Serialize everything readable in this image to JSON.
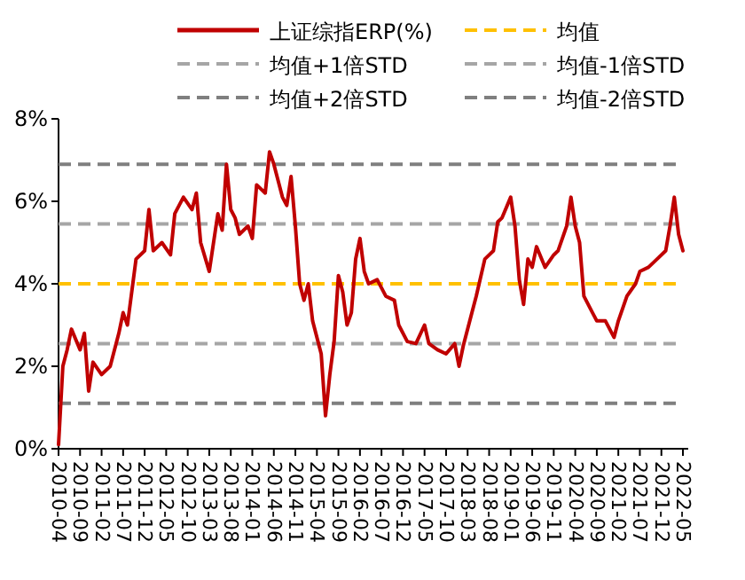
{
  "chart_data": {
    "type": "line",
    "x": [
      "2010-04",
      "2010-05",
      "2010-06",
      "2010-07",
      "2010-09",
      "2010-10",
      "2010-11",
      "2010-12",
      "2011-02",
      "2011-04",
      "2011-06",
      "2011-07",
      "2011-08",
      "2011-10",
      "2011-12",
      "2012-01",
      "2012-02",
      "2012-04",
      "2012-06",
      "2012-07",
      "2012-09",
      "2012-11",
      "2012-12",
      "2013-01",
      "2013-03",
      "2013-05",
      "2013-06",
      "2013-07",
      "2013-08",
      "2013-09",
      "2013-10",
      "2013-12",
      "2014-01",
      "2014-02",
      "2014-04",
      "2014-05",
      "2014-06",
      "2014-08",
      "2014-09",
      "2014-10",
      "2014-11",
      "2014-12",
      "2015-01",
      "2015-02",
      "2015-03",
      "2015-05",
      "2015-06",
      "2015-07",
      "2015-08",
      "2015-09",
      "2015-10",
      "2015-11",
      "2015-12",
      "2016-01",
      "2016-02",
      "2016-03",
      "2016-04",
      "2016-06",
      "2016-08",
      "2016-10",
      "2016-11",
      "2017-01",
      "2017-03",
      "2017-05",
      "2017-06",
      "2017-08",
      "2017-10",
      "2017-12",
      "2018-01",
      "2018-02",
      "2018-04",
      "2018-05",
      "2018-07",
      "2018-09",
      "2018-10",
      "2018-11",
      "2019-01",
      "2019-02",
      "2019-03",
      "2019-04",
      "2019-05",
      "2019-06",
      "2019-07",
      "2019-09",
      "2019-11",
      "2019-12",
      "2020-02",
      "2020-03",
      "2020-04",
      "2020-05",
      "2020-06",
      "2020-08",
      "2020-09",
      "2020-11",
      "2021-01",
      "2021-02",
      "2021-04",
      "2021-06",
      "2021-07",
      "2021-09",
      "2021-11",
      "2022-01",
      "2022-02",
      "2022-03",
      "2022-04",
      "2022-05"
    ],
    "series": [
      {
        "name": "上证综指ERP(%)",
        "color": "#c00000",
        "values": [
          0.1,
          2.0,
          2.4,
          2.9,
          2.4,
          2.8,
          1.4,
          2.1,
          1.8,
          2.0,
          2.8,
          3.3,
          3.0,
          4.6,
          4.8,
          5.8,
          4.8,
          5.0,
          4.7,
          5.7,
          6.1,
          5.8,
          6.2,
          5.0,
          4.3,
          5.7,
          5.3,
          6.9,
          5.8,
          5.6,
          5.2,
          5.4,
          5.1,
          6.4,
          6.2,
          7.2,
          6.9,
          6.1,
          5.9,
          6.6,
          5.4,
          4.0,
          3.6,
          4.0,
          3.1,
          2.3,
          0.8,
          1.8,
          2.6,
          4.2,
          3.8,
          3.0,
          3.3,
          4.6,
          5.1,
          4.3,
          4.0,
          4.1,
          3.7,
          3.6,
          3.0,
          2.6,
          2.55,
          3.0,
          2.55,
          2.4,
          2.3,
          2.55,
          2.0,
          2.5,
          3.3,
          3.7,
          4.6,
          4.8,
          5.5,
          5.6,
          6.1,
          5.4,
          4.1,
          3.5,
          4.6,
          4.4,
          4.9,
          4.4,
          4.7,
          4.8,
          5.4,
          6.1,
          5.4,
          5.0,
          3.7,
          3.3,
          3.1,
          3.1,
          2.7,
          3.1,
          3.7,
          4.0,
          4.3,
          4.4,
          4.6,
          4.8,
          5.4,
          6.1,
          5.2,
          4.8
        ]
      }
    ],
    "ref_lines": [
      {
        "axis": "y",
        "value": 4.0,
        "label": "均值",
        "color": "#ffc000",
        "line_style": "dashed"
      },
      {
        "axis": "y",
        "value": 5.45,
        "label": "均值+1倍STD",
        "color": "#a6a6a6",
        "line_style": "dashed"
      },
      {
        "axis": "y",
        "value": 2.55,
        "label": "均值-1倍STD",
        "color": "#a6a6a6",
        "line_style": "dashed"
      },
      {
        "axis": "y",
        "value": 6.9,
        "label": "均值+2倍STD",
        "color": "#7f7f7f",
        "line_style": "dashed"
      },
      {
        "axis": "y",
        "value": 1.1,
        "label": "均值-2倍STD",
        "color": "#7f7f7f",
        "line_style": "dashed"
      }
    ],
    "xlim": [
      "2010-04",
      "2022-05"
    ],
    "xticks": [
      "2010-04",
      "2010-09",
      "2011-02",
      "2011-07",
      "2011-12",
      "2012-05",
      "2012-10",
      "2013-03",
      "2013-08",
      "2014-01",
      "2014-06",
      "2014-11",
      "2015-04",
      "2015-09",
      "2016-02",
      "2016-07",
      "2016-12",
      "2017-05",
      "2017-10",
      "2018-03",
      "2018-08",
      "2019-01",
      "2019-06",
      "2019-11",
      "2020-04",
      "2020-09",
      "2021-02",
      "2021-07",
      "2021-12",
      "2022-05"
    ],
    "ylim": [
      0,
      8
    ],
    "yticks": [
      {
        "value": 0,
        "label": "0%"
      },
      {
        "value": 2,
        "label": "2%"
      },
      {
        "value": 4,
        "label": "4%"
      },
      {
        "value": 6,
        "label": "6%"
      },
      {
        "value": 8,
        "label": "8%"
      }
    ],
    "grid": false,
    "legend": "top",
    "line_style": "solid",
    "marker": "none"
  }
}
